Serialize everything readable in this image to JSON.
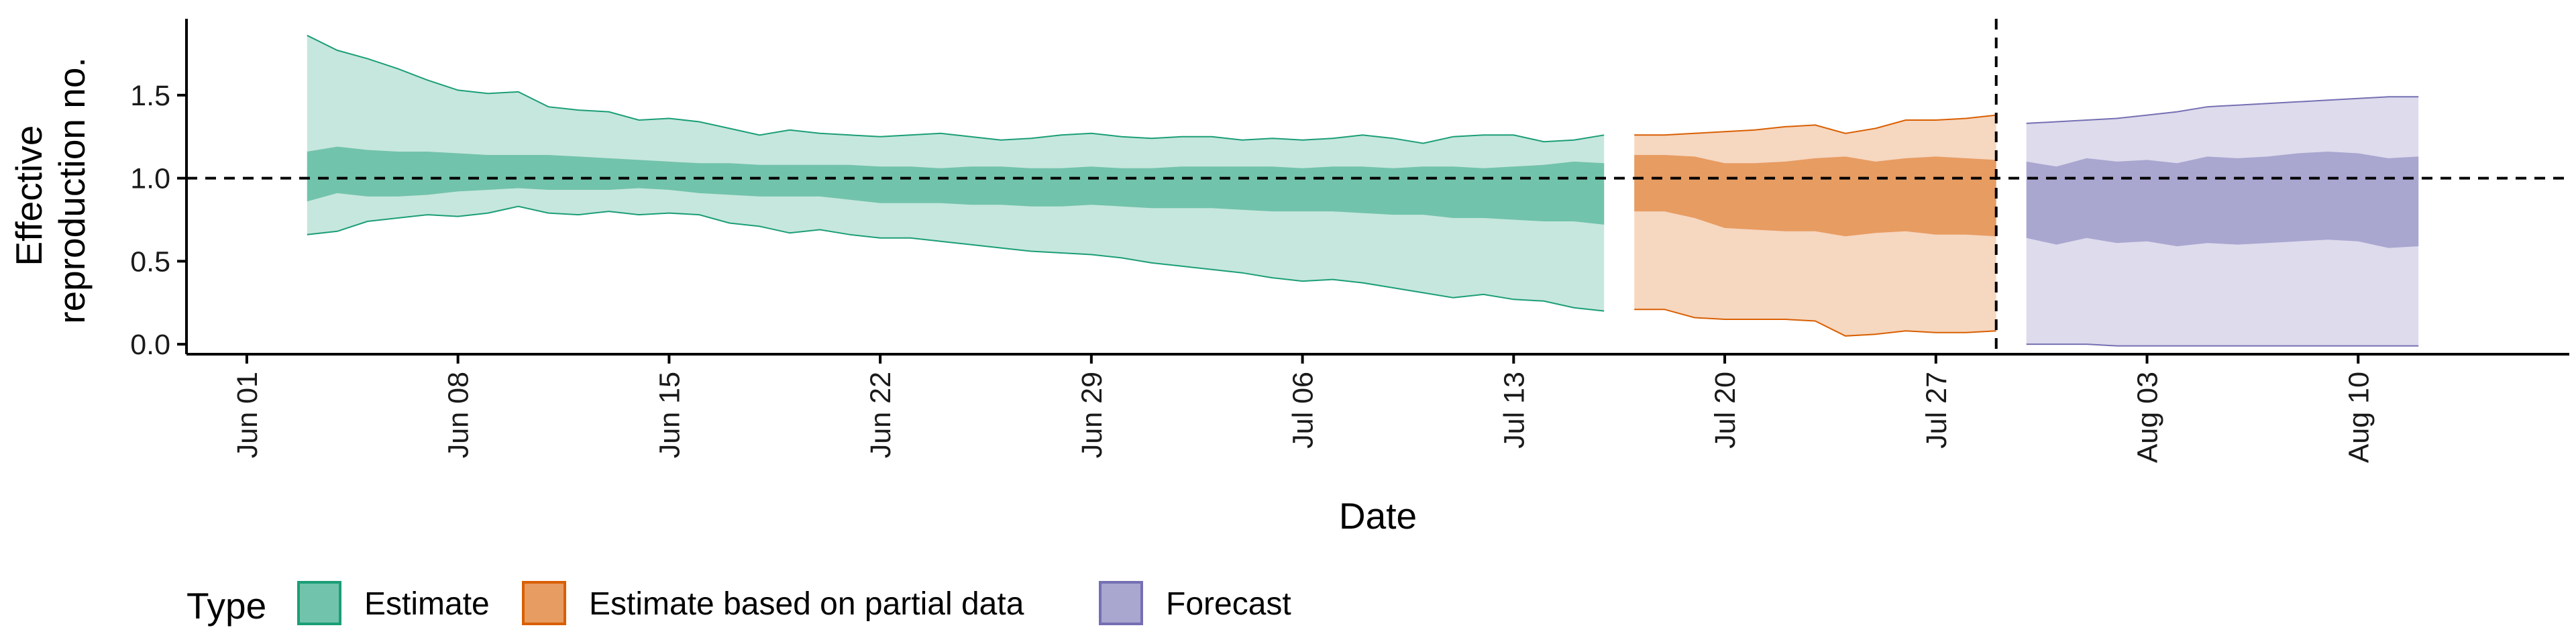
{
  "chart_data": {
    "type": "area",
    "xlabel": "Date",
    "ylabel_lines": [
      "Effective",
      "reproduction no."
    ],
    "legend_title": "Type",
    "legend_position": "bottom-left",
    "xlim": [
      "2020-05-30",
      "2020-08-17"
    ],
    "ylim": [
      -0.06,
      1.96
    ],
    "y_ticks": [
      0.0,
      0.5,
      1.0,
      1.5
    ],
    "y_tick_labels": [
      "0.0",
      "0.5",
      "1.0",
      "1.5"
    ],
    "x_ticks": [
      "2020-06-01",
      "2020-06-08",
      "2020-06-15",
      "2020-06-22",
      "2020-06-29",
      "2020-07-06",
      "2020-07-13",
      "2020-07-20",
      "2020-07-27",
      "2020-08-03",
      "2020-08-10"
    ],
    "x_tick_labels": [
      "Jun 01",
      "Jun 08",
      "Jun 15",
      "Jun 22",
      "Jun 29",
      "Jul 06",
      "Jul 13",
      "Jul 20",
      "Jul 27",
      "Aug 03",
      "Aug 10"
    ],
    "reference_line_y": 1.0,
    "reference_line_x": "2020-07-29",
    "grid": false,
    "series": [
      {
        "name": "Estimate",
        "color": "#1B9E77",
        "dates": [
          "2020-06-03",
          "2020-06-04",
          "2020-06-05",
          "2020-06-06",
          "2020-06-07",
          "2020-06-08",
          "2020-06-09",
          "2020-06-10",
          "2020-06-11",
          "2020-06-12",
          "2020-06-13",
          "2020-06-14",
          "2020-06-15",
          "2020-06-16",
          "2020-06-17",
          "2020-06-18",
          "2020-06-19",
          "2020-06-20",
          "2020-06-21",
          "2020-06-22",
          "2020-06-23",
          "2020-06-24",
          "2020-06-25",
          "2020-06-26",
          "2020-06-27",
          "2020-06-28",
          "2020-06-29",
          "2020-06-30",
          "2020-07-01",
          "2020-07-02",
          "2020-07-03",
          "2020-07-04",
          "2020-07-05",
          "2020-07-06",
          "2020-07-07",
          "2020-07-08",
          "2020-07-09",
          "2020-07-10",
          "2020-07-11",
          "2020-07-12",
          "2020-07-13",
          "2020-07-14",
          "2020-07-15",
          "2020-07-16"
        ],
        "lower_90": [
          0.66,
          0.68,
          0.74,
          0.76,
          0.78,
          0.77,
          0.79,
          0.83,
          0.79,
          0.78,
          0.8,
          0.78,
          0.79,
          0.78,
          0.73,
          0.71,
          0.67,
          0.69,
          0.66,
          0.64,
          0.64,
          0.62,
          0.6,
          0.58,
          0.56,
          0.55,
          0.54,
          0.52,
          0.49,
          0.47,
          0.45,
          0.43,
          0.4,
          0.38,
          0.39,
          0.37,
          0.34,
          0.31,
          0.28,
          0.3,
          0.27,
          0.26,
          0.22,
          0.2
        ],
        "upper_90": [
          1.86,
          1.77,
          1.72,
          1.66,
          1.59,
          1.53,
          1.51,
          1.52,
          1.43,
          1.41,
          1.4,
          1.35,
          1.36,
          1.34,
          1.3,
          1.26,
          1.29,
          1.27,
          1.26,
          1.25,
          1.26,
          1.27,
          1.25,
          1.23,
          1.24,
          1.26,
          1.27,
          1.25,
          1.24,
          1.25,
          1.25,
          1.23,
          1.24,
          1.23,
          1.24,
          1.26,
          1.24,
          1.21,
          1.25,
          1.26,
          1.26,
          1.22,
          1.23,
          1.26
        ],
        "lower_50": [
          0.86,
          0.91,
          0.89,
          0.89,
          0.9,
          0.92,
          0.93,
          0.94,
          0.93,
          0.93,
          0.93,
          0.94,
          0.93,
          0.91,
          0.9,
          0.89,
          0.89,
          0.89,
          0.87,
          0.85,
          0.85,
          0.85,
          0.84,
          0.84,
          0.83,
          0.83,
          0.84,
          0.83,
          0.82,
          0.82,
          0.82,
          0.81,
          0.8,
          0.8,
          0.8,
          0.79,
          0.78,
          0.78,
          0.76,
          0.76,
          0.75,
          0.74,
          0.74,
          0.72
        ],
        "upper_50": [
          1.16,
          1.19,
          1.17,
          1.16,
          1.16,
          1.15,
          1.14,
          1.14,
          1.14,
          1.13,
          1.12,
          1.11,
          1.1,
          1.09,
          1.09,
          1.08,
          1.08,
          1.08,
          1.08,
          1.07,
          1.07,
          1.06,
          1.07,
          1.07,
          1.06,
          1.06,
          1.07,
          1.06,
          1.06,
          1.07,
          1.07,
          1.07,
          1.07,
          1.06,
          1.07,
          1.07,
          1.06,
          1.07,
          1.07,
          1.06,
          1.07,
          1.08,
          1.1,
          1.09
        ]
      },
      {
        "name": "Estimate based on partial data",
        "color": "#D95F02",
        "dates": [
          "2020-07-17",
          "2020-07-18",
          "2020-07-19",
          "2020-07-20",
          "2020-07-21",
          "2020-07-22",
          "2020-07-23",
          "2020-07-24",
          "2020-07-25",
          "2020-07-26",
          "2020-07-27",
          "2020-07-28",
          "2020-07-29"
        ],
        "lower_90": [
          0.21,
          0.21,
          0.16,
          0.15,
          0.15,
          0.15,
          0.14,
          0.05,
          0.06,
          0.08,
          0.07,
          0.07,
          0.08
        ],
        "upper_90": [
          1.26,
          1.26,
          1.27,
          1.28,
          1.29,
          1.31,
          1.32,
          1.27,
          1.3,
          1.35,
          1.35,
          1.36,
          1.38
        ],
        "lower_50": [
          0.8,
          0.8,
          0.76,
          0.7,
          0.69,
          0.68,
          0.68,
          0.65,
          0.67,
          0.68,
          0.66,
          0.66,
          0.65
        ],
        "upper_50": [
          1.14,
          1.14,
          1.13,
          1.09,
          1.09,
          1.1,
          1.12,
          1.13,
          1.1,
          1.12,
          1.13,
          1.12,
          1.11
        ]
      },
      {
        "name": "Forecast",
        "color": "#7570B3",
        "dates": [
          "2020-07-30",
          "2020-07-31",
          "2020-08-01",
          "2020-08-02",
          "2020-08-03",
          "2020-08-04",
          "2020-08-05",
          "2020-08-06",
          "2020-08-07",
          "2020-08-08",
          "2020-08-09",
          "2020-08-10",
          "2020-08-11",
          "2020-08-12"
        ],
        "lower_90": [
          0.0,
          0.0,
          0.0,
          -0.01,
          -0.01,
          -0.01,
          -0.01,
          -0.01,
          -0.01,
          -0.01,
          -0.01,
          -0.01,
          -0.01,
          -0.01
        ],
        "upper_90": [
          1.33,
          1.34,
          1.35,
          1.36,
          1.38,
          1.4,
          1.43,
          1.44,
          1.45,
          1.46,
          1.47,
          1.48,
          1.49,
          1.49
        ],
        "lower_50": [
          0.64,
          0.6,
          0.64,
          0.61,
          0.62,
          0.59,
          0.61,
          0.6,
          0.61,
          0.62,
          0.63,
          0.62,
          0.58,
          0.59
        ],
        "upper_50": [
          1.1,
          1.07,
          1.12,
          1.1,
          1.11,
          1.09,
          1.13,
          1.12,
          1.13,
          1.15,
          1.16,
          1.15,
          1.12,
          1.13
        ]
      }
    ]
  }
}
